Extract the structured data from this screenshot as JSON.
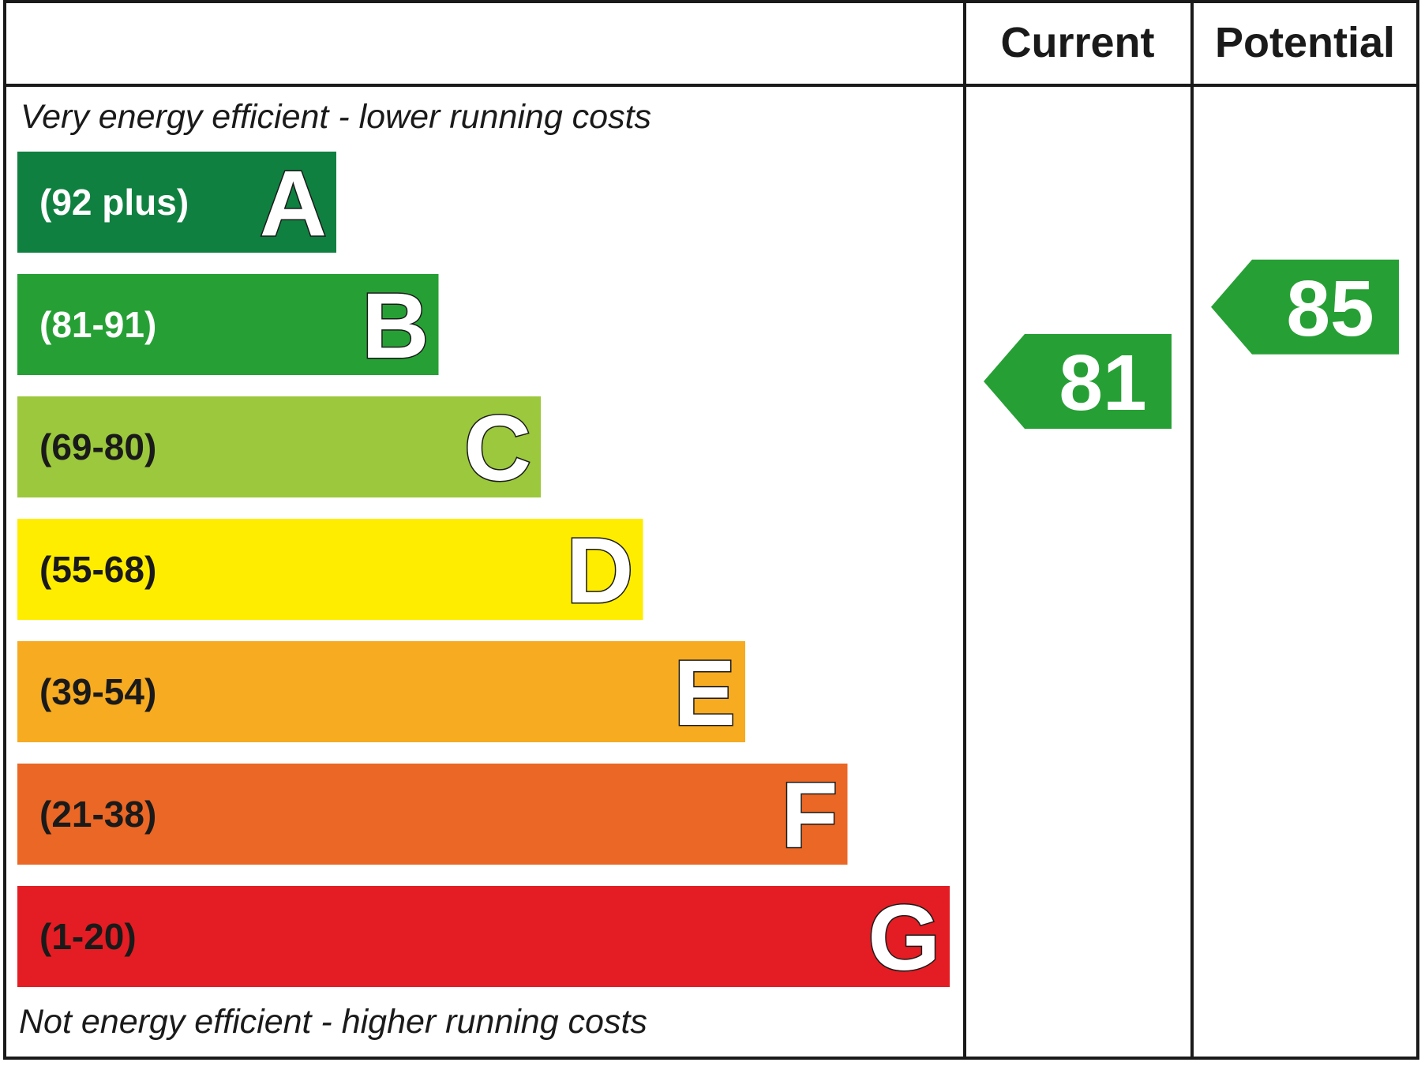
{
  "headers": {
    "current": "Current",
    "potential": "Potential"
  },
  "captions": {
    "top": "Very energy efficient - lower running costs",
    "bottom": "Not energy efficient - higher running costs"
  },
  "chart_data": {
    "type": "bar",
    "orientation": "horizontal",
    "bands": [
      {
        "letter": "A",
        "range": "(92 plus)",
        "min": 92,
        "max": 100,
        "color": "#0f8040",
        "range_text_color": "#ffffff"
      },
      {
        "letter": "B",
        "range": "(81-91)",
        "min": 81,
        "max": 91,
        "color": "#26a035",
        "range_text_color": "#ffffff"
      },
      {
        "letter": "C",
        "range": "(69-80)",
        "min": 69,
        "max": 80,
        "color": "#9bc83c",
        "range_text_color": "#1a1a1a"
      },
      {
        "letter": "D",
        "range": "(55-68)",
        "min": 55,
        "max": 68,
        "color": "#ffed00",
        "range_text_color": "#1a1a1a"
      },
      {
        "letter": "E",
        "range": "(39-54)",
        "min": 39,
        "max": 54,
        "color": "#f6ab21",
        "range_text_color": "#1a1a1a"
      },
      {
        "letter": "F",
        "range": "(21-38)",
        "min": 21,
        "max": 38,
        "color": "#ea6725",
        "range_text_color": "#1a1a1a"
      },
      {
        "letter": "G",
        "range": "(1-20)",
        "min": 1,
        "max": 20,
        "color": "#e31d23",
        "range_text_color": "#1a1a1a"
      }
    ],
    "ratings": {
      "current": {
        "value": 81,
        "band": "B",
        "color": "#26a035"
      },
      "potential": {
        "value": 85,
        "band": "B",
        "color": "#26a035"
      }
    }
  }
}
